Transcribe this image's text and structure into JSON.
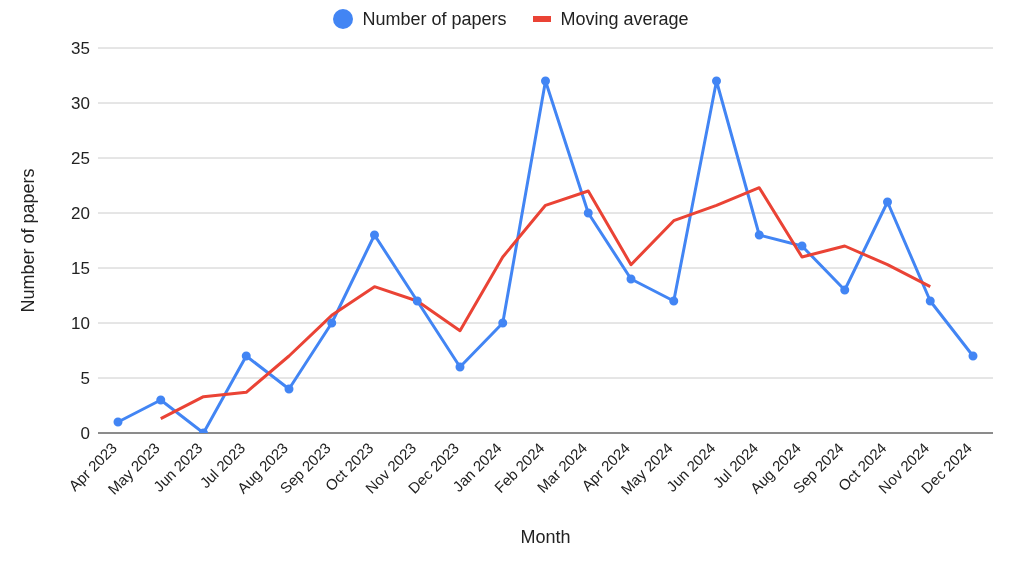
{
  "chart_data": {
    "type": "line",
    "xlabel": "Month",
    "ylabel": "Number of papers",
    "categories": [
      "Apr 2023",
      "May 2023",
      "Jun 2023",
      "Jul 2023",
      "Aug 2023",
      "Sep 2023",
      "Oct 2023",
      "Nov 2023",
      "Dec 2023",
      "Jan 2024",
      "Feb 2024",
      "Mar 2024",
      "Apr 2024",
      "May 2024",
      "Jun 2024",
      "Jul 2024",
      "Aug 2024",
      "Sep 2024",
      "Oct 2024",
      "Nov 2024",
      "Dec 2024"
    ],
    "series": [
      {
        "name": "Number of papers",
        "color": "#4285f4",
        "marker": "circle",
        "values": [
          1,
          3,
          0,
          7,
          4,
          10,
          18,
          12,
          6,
          10,
          32,
          20,
          14,
          12,
          32,
          18,
          17,
          13,
          21,
          12,
          7
        ]
      },
      {
        "name": "Moving average",
        "color": "#ea4335",
        "marker": "none",
        "values": [
          null,
          1.3,
          3.3,
          3.7,
          7,
          10.7,
          13.3,
          12,
          9.3,
          16,
          20.7,
          22,
          15.3,
          19.3,
          20.7,
          22.3,
          16,
          17,
          15.3,
          13.3,
          null
        ]
      }
    ],
    "ylim": [
      0,
      35
    ],
    "yticks": [
      0,
      5,
      10,
      15,
      20,
      25,
      30,
      35
    ],
    "grid": "y",
    "legend": "top",
    "line_style": "solid"
  }
}
